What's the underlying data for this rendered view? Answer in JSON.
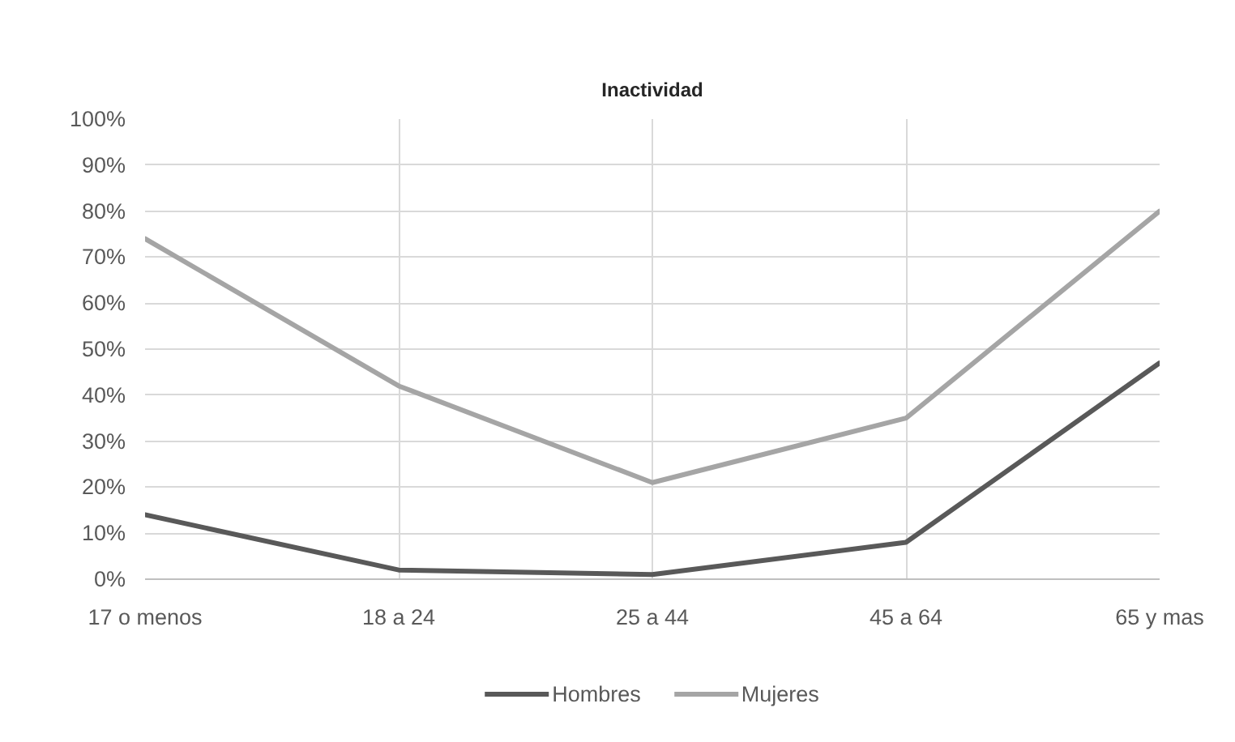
{
  "chart_data": {
    "type": "line",
    "title": "Inactividad",
    "categories": [
      "17 o menos",
      "18 a 24",
      "25 a 44",
      "45 a 64",
      "65 y mas"
    ],
    "series": [
      {
        "name": "Hombres",
        "color": "#595959",
        "values": [
          14,
          2,
          1,
          8,
          47
        ]
      },
      {
        "name": "Mujeres",
        "color": "#a5a5a5",
        "values": [
          74,
          42,
          21,
          35,
          80
        ]
      }
    ],
    "ylim": [
      0,
      100
    ],
    "yticks": [
      {
        "value": 0,
        "label": "0%"
      },
      {
        "value": 10,
        "label": "10%"
      },
      {
        "value": 20,
        "label": "20%"
      },
      {
        "value": 30,
        "label": "30%"
      },
      {
        "value": 40,
        "label": "40%"
      },
      {
        "value": 50,
        "label": "50%"
      },
      {
        "value": 60,
        "label": "60%"
      },
      {
        "value": 70,
        "label": "70%"
      },
      {
        "value": 80,
        "label": "80%"
      },
      {
        "value": 90,
        "label": "90%"
      },
      {
        "value": 100,
        "label": "100%"
      }
    ],
    "grid": true,
    "legend": "bottom",
    "marker": "none",
    "line_style": "solid"
  }
}
